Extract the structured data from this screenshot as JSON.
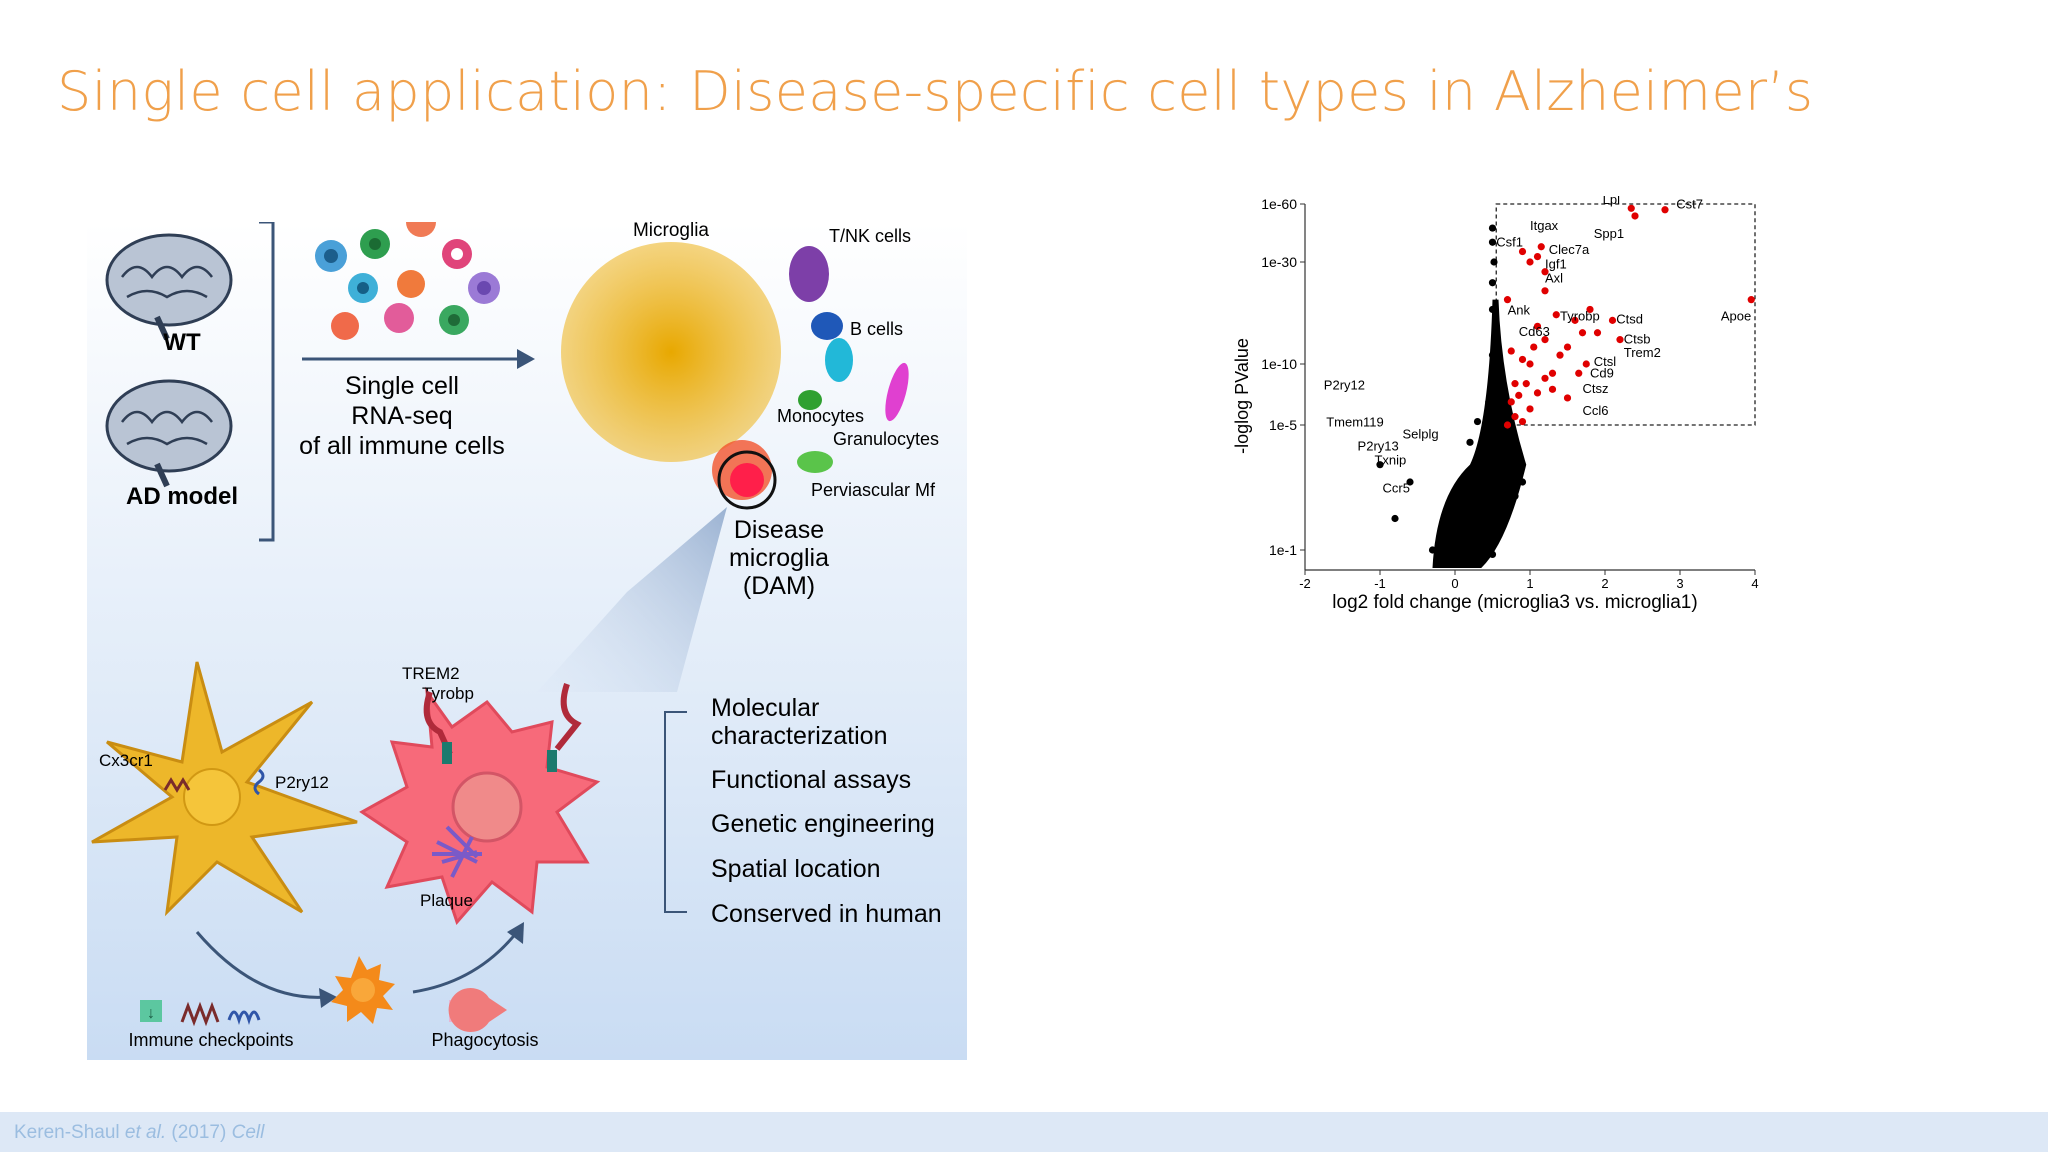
{
  "slide": {
    "title": "Single cell application: Disease-specific cell types in Alzheimer’s",
    "title_color": "#f0a04b",
    "citation_author": "Keren-Shaul ",
    "citation_etal": "et al.",
    "citation_year": " (2017) ",
    "citation_journal": "Cell"
  },
  "figure": {
    "wt_label": "WT",
    "ad_label": "AD model",
    "scrnaseq_lines": [
      "Single cell",
      "RNA-seq",
      "of all immune cells"
    ],
    "clusters": {
      "microglia": "Microglia",
      "tnk": "T/NK cells",
      "bcells": "B cells",
      "monocytes": "Monocytes",
      "granulocytes": "Granulocytes",
      "perivascular": "Perviascular Mf"
    },
    "dam_lines": [
      "Disease",
      "microglia",
      "(DAM)"
    ],
    "trem2": "TREM2",
    "tyrobp": "Tyrobp",
    "cx3cr1": "Cx3cr1",
    "p2ry12": "P2ry12",
    "plaque": "Plaque",
    "immune_checkpoints": "Immune checkpoints",
    "phagocytosis": "Phagocytosis",
    "characterization": [
      [
        "Molecular",
        "characterization"
      ],
      [
        "Functional assays"
      ],
      [
        "Genetic engineering"
      ],
      [
        "Spatial location"
      ],
      [
        "Conserved in human"
      ]
    ]
  },
  "chart_data": {
    "type": "scatter",
    "title": "",
    "xlabel": "log2 fold change (microglia3 vs. microglia1)",
    "ylabel": "-loglog PValue",
    "xlim": [
      -2,
      4
    ],
    "x_ticks": [
      "-2",
      "-1",
      "0",
      "1",
      "2",
      "3",
      "4"
    ],
    "y_ticks": [
      "1e-1",
      "1e-5",
      "1e-10",
      "1e-30",
      "1e-60"
    ],
    "highlight_box": {
      "x": [
        0.55,
        4.0
      ],
      "y_from": "1e-5",
      "y_to": "1e-60"
    },
    "series": [
      {
        "color": "#000000",
        "points": [
          [
            -0.1,
            0.5
          ],
          [
            0.1,
            0.6
          ],
          [
            0.3,
            0.7
          ],
          [
            0.5,
            0.8
          ],
          [
            0.2,
            1.2
          ],
          [
            0.4,
            1.4
          ],
          [
            0.6,
            1.6
          ],
          [
            0.1,
            1.0
          ],
          [
            0.8,
            2.0
          ],
          [
            0.5,
            2.2
          ],
          [
            0.3,
            1.8
          ],
          [
            0.7,
            2.6
          ],
          [
            0.9,
            2.4
          ],
          [
            0.45,
            2.9
          ],
          [
            0.6,
            3.2
          ],
          [
            0.35,
            3.4
          ],
          [
            0.5,
            3.8
          ],
          [
            0.2,
            4.0
          ],
          [
            0.4,
            4.4
          ],
          [
            0.55,
            4.8
          ],
          [
            0.3,
            5.2
          ],
          [
            0.5,
            5.6
          ],
          [
            0.45,
            6.5
          ],
          [
            0.5,
            7.5
          ],
          [
            0.5,
            8.5
          ],
          [
            0.52,
            9.5
          ],
          [
            0.5,
            11
          ],
          [
            0.55,
            14
          ],
          [
            0.5,
            18
          ],
          [
            0.5,
            24
          ],
          [
            0.52,
            30
          ],
          [
            0.5,
            38
          ],
          [
            0.5,
            45
          ],
          [
            -0.3,
            1.0
          ],
          [
            -0.2,
            0.8
          ],
          [
            0.0,
            0.4
          ],
          [
            -1.0,
            3.0
          ],
          [
            -0.6,
            2.4
          ],
          [
            -0.8,
            1.5
          ]
        ]
      },
      {
        "color": "#e00000",
        "points": [
          [
            0.7,
            5.0
          ],
          [
            0.8,
            5.5
          ],
          [
            0.9,
            5.2
          ],
          [
            1.0,
            6.0
          ],
          [
            0.75,
            6.5
          ],
          [
            0.85,
            7.0
          ],
          [
            1.1,
            7.2
          ],
          [
            0.95,
            8.0
          ],
          [
            1.2,
            8.5
          ],
          [
            1.3,
            9.0
          ],
          [
            1.0,
            10.0
          ],
          [
            1.4,
            11.0
          ],
          [
            1.5,
            12.0
          ],
          [
            1.2,
            13.0
          ],
          [
            1.7,
            14.0
          ],
          [
            1.1,
            15.0
          ],
          [
            1.6,
            16.0
          ],
          [
            1.8,
            18.0
          ],
          [
            0.7,
            20.0
          ],
          [
            1.2,
            22.0
          ],
          [
            1.0,
            30.0
          ],
          [
            1.1,
            32.0
          ],
          [
            0.9,
            34.0
          ],
          [
            1.15,
            36.0
          ],
          [
            2.35,
            57.0
          ],
          [
            2.8,
            56.0
          ],
          [
            2.4,
            52.0
          ],
          [
            1.2,
            27.0
          ],
          [
            1.35,
            17.0
          ],
          [
            2.1,
            16.0
          ],
          [
            2.2,
            13.0
          ],
          [
            1.9,
            14.0
          ],
          [
            1.75,
            10.0
          ],
          [
            1.65,
            9.0
          ],
          [
            1.3,
            7.5
          ],
          [
            1.5,
            6.8
          ],
          [
            0.8,
            8.0
          ],
          [
            0.9,
            10.5
          ],
          [
            1.05,
            12.0
          ],
          [
            0.75,
            11.5
          ],
          [
            3.95,
            20.0
          ]
        ]
      }
    ],
    "gene_labels": [
      {
        "text": "Lpl",
        "x": 2.35,
        "y": "1e-60"
      },
      {
        "text": "Cst7",
        "x": 2.8,
        "y": "1e-60"
      },
      {
        "text": "Itgax",
        "x": 1.15,
        "y": "1e-30"
      },
      {
        "text": "Spp1",
        "x": 2.4,
        "y": "1e-30"
      },
      {
        "text": "Csf1",
        "x": 0.9,
        "y": "1e-30"
      },
      {
        "text": "Clec7a",
        "x": 1.2,
        "y": "1e-30"
      },
      {
        "text": "Igf1",
        "x": 1.1,
        "y": "1e-30"
      },
      {
        "text": "Axl",
        "x": 1.1,
        "y": "1e-30"
      },
      {
        "text": "Ank",
        "x": 1.0,
        "y": "1e-10"
      },
      {
        "text": "Tyrobp",
        "x": 1.35,
        "y": "1e-10"
      },
      {
        "text": "Ctsd",
        "x": 2.1,
        "y": "1e-10"
      },
      {
        "text": "Cd63",
        "x": 1.0,
        "y": "1e-10"
      },
      {
        "text": "Ctsb",
        "x": 2.2,
        "y": "1e-10"
      },
      {
        "text": "Apoe",
        "x": 3.95,
        "y": "1e-10"
      },
      {
        "text": "Trem2",
        "x": 1.9,
        "y": "1e-10"
      },
      {
        "text": "Ctsl",
        "x": 1.75,
        "y": "1e-10"
      },
      {
        "text": "Cd9",
        "x": 1.65,
        "y": "1e-10"
      },
      {
        "text": "Ctsz",
        "x": 1.5,
        "y": "1e-5"
      },
      {
        "text": "Ccl6",
        "x": 1.3,
        "y": "1e-5"
      },
      {
        "text": "P2ry12",
        "x": -1.2,
        "y": "1e-5"
      },
      {
        "text": "Tmem119",
        "x": -0.9,
        "y": "1e-5"
      },
      {
        "text": "Selplg",
        "x": -0.75,
        "y": "1e-5"
      },
      {
        "text": "P2ry13",
        "x": -0.8,
        "y": "1e-5"
      },
      {
        "text": "Txnip",
        "x": -0.6,
        "y": "1e-5"
      },
      {
        "text": "Ccr5",
        "x": -0.55,
        "y": "1e-1"
      }
    ]
  }
}
